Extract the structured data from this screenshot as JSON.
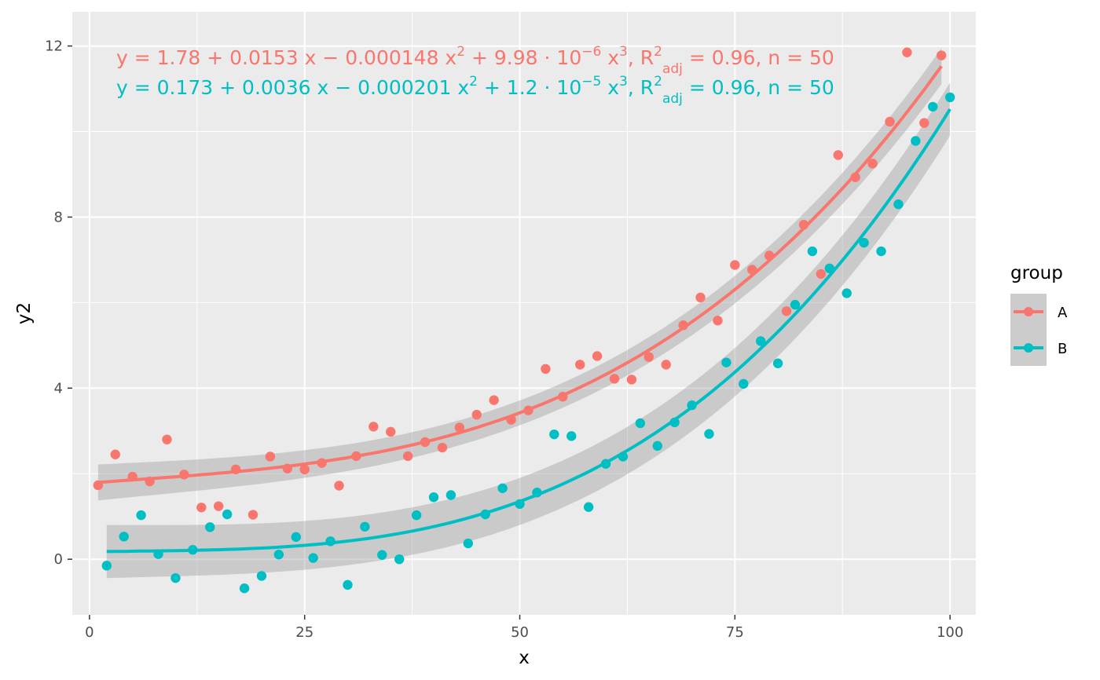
{
  "chart_data": {
    "type": "scatter",
    "xlabel": "x",
    "ylabel": "y2",
    "xlim": [
      -2,
      103
    ],
    "ylim": [
      -1.3,
      12.8
    ],
    "x_ticks": [
      0,
      25,
      50,
      75,
      100
    ],
    "x_tick_labels": [
      "0",
      "25",
      "50",
      "75",
      "100"
    ],
    "y_ticks": [
      0,
      4,
      8,
      12
    ],
    "y_tick_labels": [
      "0",
      "4",
      "8",
      "12"
    ],
    "grid": true,
    "legend": {
      "title": "group",
      "position": "right"
    },
    "series": [
      {
        "name": "A",
        "color": "#F8766D",
        "equation": {
          "y_part": "y = 1.78 + 0.0153 x − 0.000148 x",
          "sq": "2",
          "mid": " + 9.98 · 10",
          "exp10": "−6",
          "x3": " x",
          "cube": "3",
          "r_part": ", R",
          "r_sup": "2",
          "r_sub": "adj",
          "tail": " = 0.96, n = 50"
        },
        "fit": {
          "type": "poly3",
          "coef": [
            1.78,
            0.0153,
            -0.000148,
            9.98e-06
          ],
          "x_range": [
            1,
            99
          ]
        },
        "points": [
          [
            1,
            1.73
          ],
          [
            3,
            2.45
          ],
          [
            5,
            1.93
          ],
          [
            7,
            1.82
          ],
          [
            9,
            2.8
          ],
          [
            11,
            1.98
          ],
          [
            13,
            1.21
          ],
          [
            15,
            1.24
          ],
          [
            17,
            2.1
          ],
          [
            19,
            1.04
          ],
          [
            21,
            2.4
          ],
          [
            23,
            2.12
          ],
          [
            25,
            2.1
          ],
          [
            27,
            2.25
          ],
          [
            29,
            1.72
          ],
          [
            31,
            2.41
          ],
          [
            33,
            3.1
          ],
          [
            35,
            2.98
          ],
          [
            37,
            2.41
          ],
          [
            39,
            2.74
          ],
          [
            41,
            2.61
          ],
          [
            43,
            3.08
          ],
          [
            45,
            3.38
          ],
          [
            47,
            3.72
          ],
          [
            49,
            3.26
          ],
          [
            51,
            3.48
          ],
          [
            53,
            4.45
          ],
          [
            55,
            3.8
          ],
          [
            57,
            4.55
          ],
          [
            59,
            4.75
          ],
          [
            61,
            4.22
          ],
          [
            63,
            4.2
          ],
          [
            65,
            4.73
          ],
          [
            67,
            4.55
          ],
          [
            69,
            5.47
          ],
          [
            71,
            6.12
          ],
          [
            73,
            5.58
          ],
          [
            75,
            6.88
          ],
          [
            77,
            6.77
          ],
          [
            79,
            7.1
          ],
          [
            81,
            5.8
          ],
          [
            83,
            7.82
          ],
          [
            85,
            6.67
          ],
          [
            87,
            9.45
          ],
          [
            89,
            8.93
          ],
          [
            91,
            9.25
          ],
          [
            93,
            10.23
          ],
          [
            95,
            11.85
          ],
          [
            97,
            10.2
          ],
          [
            99,
            11.78
          ]
        ],
        "band": [
          0.42,
          0.29
        ]
      },
      {
        "name": "B",
        "color": "#00BFC4",
        "equation": {
          "y_part": "y = 0.173 + 0.0036 x − 0.000201 x",
          "sq": "2",
          "mid": " + 1.2 · 10",
          "exp10": "−5",
          "x3": " x",
          "cube": "3",
          "r_part": ", R",
          "r_sup": "2",
          "r_sub": "adj",
          "tail": " = 0.96, n = 50"
        },
        "fit": {
          "type": "poly3",
          "coef": [
            0.173,
            0.0036,
            -0.000201,
            1.2e-05
          ],
          "x_range": [
            2,
            100
          ]
        },
        "points": [
          [
            2,
            -0.15
          ],
          [
            4,
            0.53
          ],
          [
            6,
            1.03
          ],
          [
            8,
            0.12
          ],
          [
            10,
            -0.44
          ],
          [
            12,
            0.22
          ],
          [
            14,
            0.75
          ],
          [
            16,
            1.05
          ],
          [
            18,
            -0.68
          ],
          [
            20,
            -0.39
          ],
          [
            22,
            0.11
          ],
          [
            24,
            0.52
          ],
          [
            26,
            0.03
          ],
          [
            28,
            0.42
          ],
          [
            30,
            -0.6
          ],
          [
            32,
            0.76
          ],
          [
            34,
            0.1
          ],
          [
            36,
            0.0
          ],
          [
            38,
            1.03
          ],
          [
            40,
            1.45
          ],
          [
            42,
            1.5
          ],
          [
            44,
            0.37
          ],
          [
            46,
            1.05
          ],
          [
            48,
            1.66
          ],
          [
            50,
            1.29
          ],
          [
            52,
            1.56
          ],
          [
            54,
            2.92
          ],
          [
            56,
            2.88
          ],
          [
            58,
            1.22
          ],
          [
            60,
            2.23
          ],
          [
            62,
            2.4
          ],
          [
            64,
            3.18
          ],
          [
            66,
            2.65
          ],
          [
            68,
            3.2
          ],
          [
            70,
            3.6
          ],
          [
            72,
            2.93
          ],
          [
            74,
            4.6
          ],
          [
            76,
            4.1
          ],
          [
            78,
            5.1
          ],
          [
            80,
            4.58
          ],
          [
            82,
            5.95
          ],
          [
            84,
            7.2
          ],
          [
            86,
            6.8
          ],
          [
            88,
            6.22
          ],
          [
            90,
            7.4
          ],
          [
            92,
            7.2
          ],
          [
            94,
            8.3
          ],
          [
            96,
            9.78
          ],
          [
            98,
            10.58
          ],
          [
            100,
            10.8
          ]
        ],
        "band": [
          0.62,
          0.55
        ]
      }
    ]
  }
}
